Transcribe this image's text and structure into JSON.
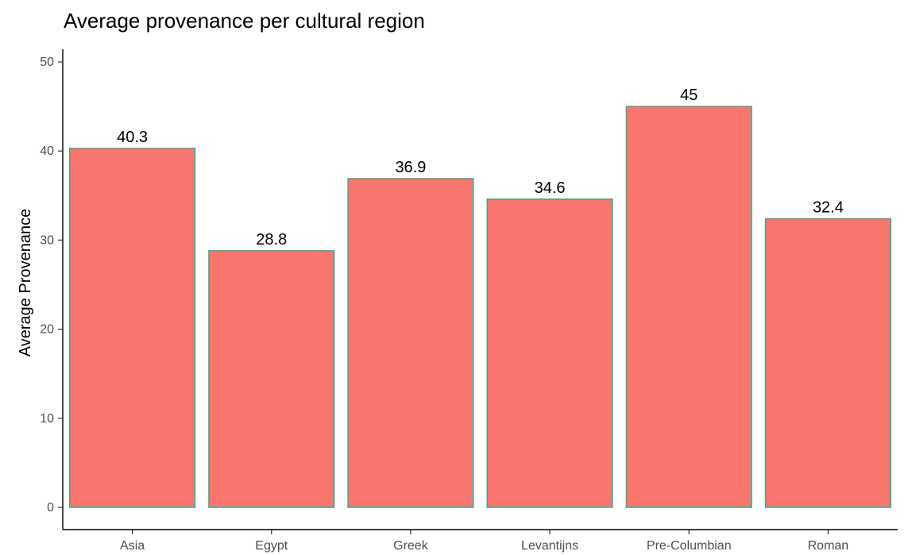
{
  "chart_data": {
    "type": "bar",
    "title": "Average provenance per cultural region",
    "xlabel": "",
    "ylabel": "Average Provenance",
    "categories": [
      "Asia",
      "Egypt",
      "Greek",
      "Levantijns",
      "Pre-Columbian",
      "Roman"
    ],
    "values": [
      40.3,
      28.8,
      36.9,
      34.6,
      45,
      32.4
    ],
    "data_labels": [
      "40.3",
      "28.8",
      "36.9",
      "34.6",
      "45",
      "32.4"
    ],
    "ylim": [
      0,
      50
    ],
    "yticks": [
      0,
      10,
      20,
      30,
      40,
      50
    ],
    "ytick_labels": [
      "0",
      "10",
      "20",
      "30",
      "40",
      "50"
    ],
    "grid": false,
    "legend": "none",
    "bar_fill_color": "#F8766D",
    "bar_outline_color": "#3AAA8C"
  }
}
